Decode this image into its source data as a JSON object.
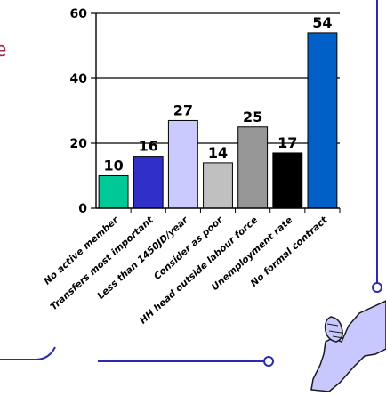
{
  "cutoff_text": "e",
  "colors": {
    "frame_line": "#2b2bb0",
    "axis": "#000000",
    "map_fill": "#c8c8ff",
    "map_stroke": "#1a1a1a"
  },
  "icons": {
    "map": "jordan-map-icon",
    "frame": "frame-line"
  },
  "chart_data": {
    "type": "bar",
    "categories": [
      "No active member",
      "Transfers most important",
      "Less than 1450JD/year",
      "Consider as poor",
      "HH head outside labour force",
      "Unemployment rate",
      "No formal contract"
    ],
    "values": [
      10,
      16,
      27,
      14,
      25,
      17,
      54
    ],
    "data_labels": [
      "10",
      "16",
      "27",
      "14",
      "25",
      "17",
      "54"
    ],
    "colors": [
      "#00c896",
      "#3030c8",
      "#cacaff",
      "#c0c0c0",
      "#969696",
      "#000000",
      "#0060c8"
    ],
    "ylim": [
      0,
      60
    ],
    "yticks": [
      0,
      20,
      40,
      60
    ],
    "grid": true,
    "title": "",
    "xlabel": "",
    "ylabel": ""
  }
}
